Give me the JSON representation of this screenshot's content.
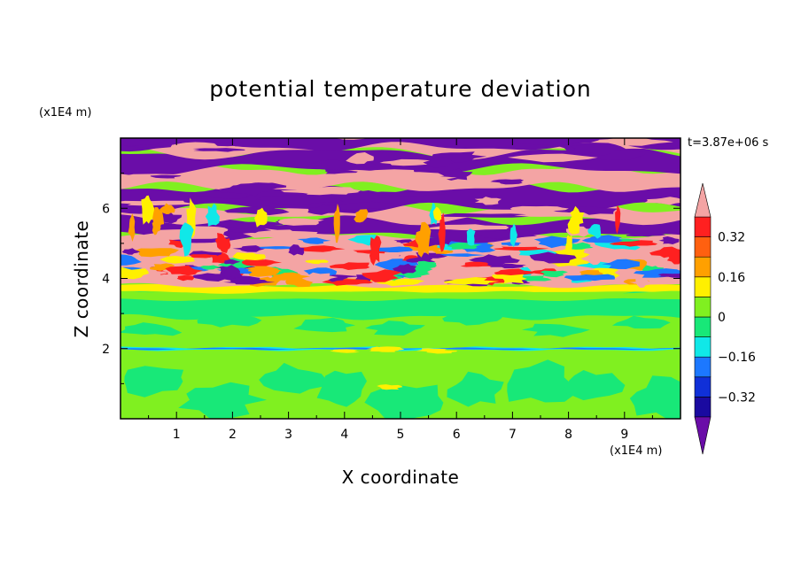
{
  "chart_data": {
    "type": "heatmap",
    "title": "potential temperature deviation",
    "xlabel": "X coordinate",
    "ylabel": "Z coordinate",
    "x_unit": "(x1E4 m)",
    "z_unit": "(x1E4 m)",
    "time_label": "t=3.87e+06 s",
    "xlim": [
      0,
      10
    ],
    "ylim": [
      0,
      8
    ],
    "x_ticks": [
      "1",
      "2",
      "3",
      "4",
      "5",
      "6",
      "7",
      "8",
      "9"
    ],
    "y_ticks": [
      "2",
      "4",
      "6"
    ],
    "colorbar": {
      "levels": [
        -0.4,
        -0.32,
        -0.24,
        -0.16,
        -0.08,
        0,
        0.08,
        0.16,
        0.24,
        0.32,
        0.4
      ],
      "tick_labels": [
        "0.32",
        "0.16",
        "0",
        "−0.16",
        "−0.32"
      ],
      "colors": [
        "#6a0da8",
        "#1a0aa0",
        "#1030d8",
        "#1c78ff",
        "#10e8e8",
        "#18e878",
        "#80f020",
        "#fff000",
        "#ffa000",
        "#ff6010",
        "#ff2020",
        "#f4a4a4"
      ],
      "extend": "both"
    },
    "layers": [
      {
        "z": [
          0,
          1.0
        ],
        "value": "0 to 0.08, patches -0.08 to 0"
      },
      {
        "z": [
          1.0,
          1.9
        ],
        "value": "-0.08 to 0.08"
      },
      {
        "z": [
          1.95,
          2.05
        ],
        "value": "-0.16 to 0.16 thin interface"
      },
      {
        "z": [
          2.1,
          3.6
        ],
        "value": "0 to 0.08, patches -0.08 to 0"
      },
      {
        "z": [
          3.6,
          3.8
        ],
        "value": "0.08 to 0.16"
      },
      {
        "z": [
          3.8,
          5.2
        ],
        "value": "mixed -0.4 to 0.4"
      },
      {
        "z": [
          5.2,
          8.0
        ],
        "value": "alternating bands < -0.4 and > 0.4"
      }
    ]
  }
}
